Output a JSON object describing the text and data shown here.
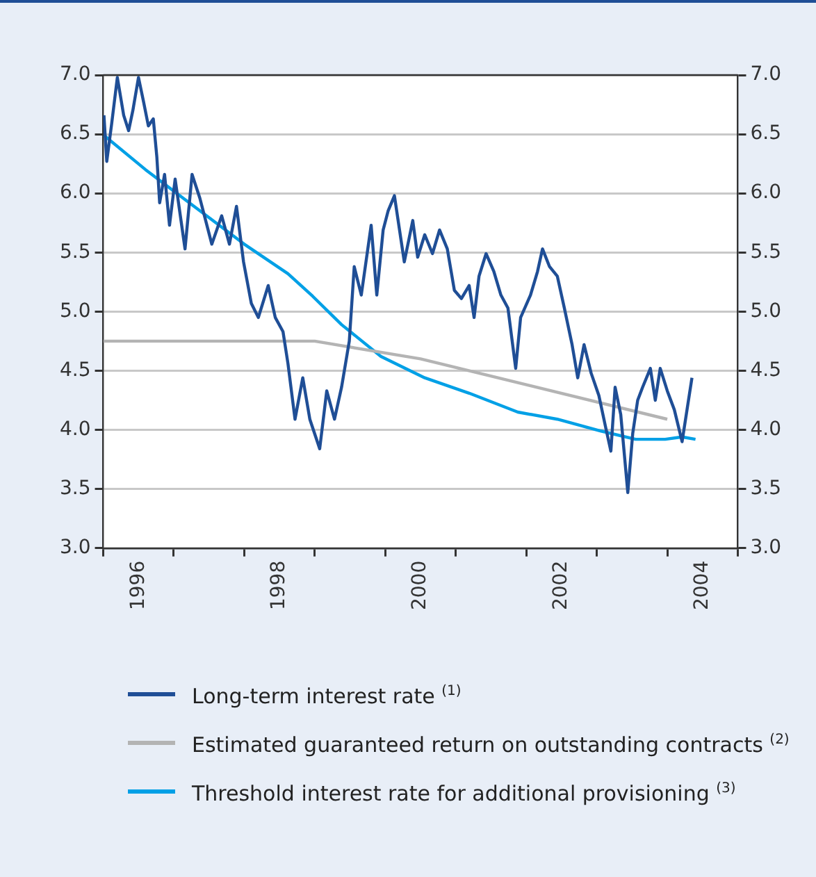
{
  "chart_data": {
    "type": "line",
    "legend": "bottom",
    "grid": "y",
    "marker": "none",
    "line_style": "solid",
    "xlim": [
      1996,
      2005
    ],
    "xticks": [
      {
        "value": 1996,
        "label": null
      },
      {
        "value": 1996.5,
        "label": "1996"
      },
      {
        "value": 1997,
        "label": null
      },
      {
        "value": 1998,
        "label": null
      },
      {
        "value": 1998.5,
        "label": "1998"
      },
      {
        "value": 1999,
        "label": null
      },
      {
        "value": 2000,
        "label": null
      },
      {
        "value": 2000.5,
        "label": "2000"
      },
      {
        "value": 2001,
        "label": null
      },
      {
        "value": 2002,
        "label": null
      },
      {
        "value": 2002.5,
        "label": "2002"
      },
      {
        "value": 2003,
        "label": null
      },
      {
        "value": 2004,
        "label": null
      },
      {
        "value": 2004.5,
        "label": "2004"
      },
      {
        "value": 2005,
        "label": null
      }
    ],
    "ylim": [
      3,
      7
    ],
    "yticks": [
      {
        "value": 3,
        "label": "3.0"
      },
      {
        "value": 3.5,
        "label": "3.5"
      },
      {
        "value": 4,
        "label": "4.0"
      },
      {
        "value": 4.5,
        "label": "4.5"
      },
      {
        "value": 5,
        "label": "5.0"
      },
      {
        "value": 5.5,
        "label": "5.5"
      },
      {
        "value": 6,
        "label": "6.0"
      },
      {
        "value": 6.5,
        "label": "6.5"
      },
      {
        "value": 7,
        "label": "7.0"
      }
    ],
    "y2lim": [
      3,
      7
    ],
    "y2ticks": [
      {
        "value": 3,
        "label": "3.0"
      },
      {
        "value": 3.5,
        "label": "3.5"
      },
      {
        "value": 4,
        "label": "4.0"
      },
      {
        "value": 4.5,
        "label": "4.5"
      },
      {
        "value": 5,
        "label": "5.0"
      },
      {
        "value": 5.5,
        "label": "5.5"
      },
      {
        "value": 6,
        "label": "6.0"
      },
      {
        "value": 6.5,
        "label": "6.5"
      },
      {
        "value": 7,
        "label": "7.0"
      }
    ],
    "series": [
      {
        "name": "Long-term interest rate $^{(1)}$",
        "color": "#1f4e96",
        "x": [
          1996.01,
          1996.05,
          1996.12,
          1996.2,
          1996.29,
          1996.36,
          1996.42,
          1996.5,
          1996.57,
          1996.64,
          1996.71,
          1996.76,
          1996.8,
          1996.87,
          1996.94,
          1997.02,
          1997.16,
          1997.26,
          1997.37,
          1997.54,
          1997.68,
          1997.79,
          1997.89,
          1997.99,
          1998.1,
          1998.2,
          1998.34,
          1998.44,
          1998.55,
          1998.62,
          1998.72,
          1998.83,
          1998.93,
          1999.07,
          1999.17,
          1999.28,
          1999.38,
          1999.49,
          1999.56,
          1999.66,
          1999.8,
          1999.88,
          1999.97,
          2000.04,
          2000.13,
          2000.27,
          2000.39,
          2000.46,
          2000.56,
          2000.67,
          2000.77,
          2000.88,
          2000.98,
          2001.08,
          2001.19,
          2001.26,
          2001.33,
          2001.43,
          2001.54,
          2001.64,
          2001.74,
          2001.85,
          2001.92,
          2002.06,
          2002.16,
          2002.23,
          2002.33,
          2002.44,
          2002.54,
          2002.65,
          2002.73,
          2002.82,
          2002.92,
          2003.03,
          2003.13,
          2003.2,
          2003.26,
          2003.34,
          2003.44,
          2003.51,
          2003.58,
          2003.65,
          2003.76,
          2003.83,
          2003.9,
          2004.0,
          2004.1,
          2004.21,
          2004.28,
          2004.35
        ],
        "values": [
          6.66,
          6.27,
          6.59,
          6.98,
          6.66,
          6.53,
          6.7,
          6.98,
          6.78,
          6.57,
          6.63,
          6.31,
          5.92,
          6.16,
          5.73,
          6.12,
          5.53,
          6.16,
          5.96,
          5.57,
          5.81,
          5.57,
          5.89,
          5.42,
          5.07,
          4.95,
          5.22,
          4.95,
          4.83,
          4.56,
          4.09,
          4.44,
          4.09,
          3.84,
          4.33,
          4.09,
          4.36,
          4.75,
          5.38,
          5.14,
          5.73,
          5.14,
          5.69,
          5.85,
          5.98,
          5.42,
          5.77,
          5.46,
          5.65,
          5.49,
          5.69,
          5.53,
          5.18,
          5.11,
          5.22,
          4.95,
          5.3,
          5.49,
          5.34,
          5.14,
          5.03,
          4.52,
          4.95,
          5.14,
          5.34,
          5.53,
          5.38,
          5.3,
          5.03,
          4.72,
          4.44,
          4.72,
          4.48,
          4.29,
          4.01,
          3.82,
          4.36,
          4.13,
          3.47,
          3.97,
          4.25,
          4.36,
          4.52,
          4.25,
          4.52,
          4.33,
          4.17,
          3.9,
          4.17,
          4.44
        ]
      },
      {
        "name": "Estimated guaranteed return on outstanding contracts $^{(2)}$",
        "color": "#b4b4b4",
        "x": [
          1996,
          1999,
          2000.5,
          2004
        ],
        "values": [
          4.75,
          4.75,
          4.6,
          4.09
        ]
      },
      {
        "name": "Threshold interest rate for additional provisioning $^{(3)}$",
        "color": "#00a0e6",
        "x": [
          1996.01,
          1996.6,
          1997.02,
          1998,
          1998.62,
          1998.97,
          1999.38,
          1999.94,
          2000.56,
          2001.19,
          2001.88,
          2002.44,
          2003.06,
          2003.55,
          2003.97,
          2004.21,
          2004.4
        ],
        "values": [
          6.49,
          6.2,
          6.01,
          5.57,
          5.32,
          5.13,
          4.89,
          4.62,
          4.44,
          4.31,
          4.15,
          4.09,
          3.99,
          3.92,
          3.92,
          3.94,
          3.92
        ]
      }
    ]
  }
}
